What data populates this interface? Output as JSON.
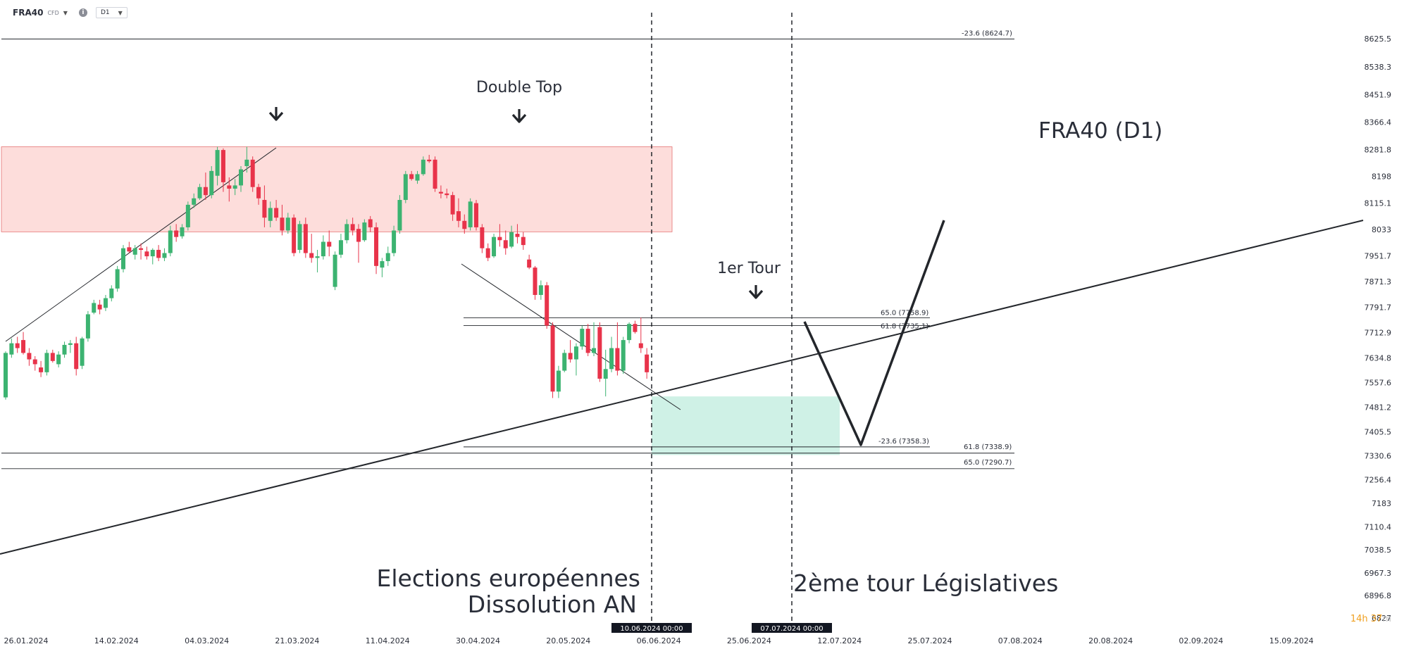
{
  "toolbar": {
    "symbol": "FRA40",
    "symbol_type": "CFD",
    "timeframe": "D1",
    "info_glyph": "i"
  },
  "timer": {
    "value": "14h 37",
    "unit": "m"
  },
  "colors": {
    "bull": "#26a69a",
    "bull_body": "#3cb371",
    "bear": "#e8334a",
    "resistance_zone": "rgba(244,67,54,0.18)",
    "support_zone": "rgba(38,190,140,0.22)",
    "line": "#23262b"
  },
  "chart_data": {
    "type": "candlestick",
    "instrument": "FRA40 (D1)",
    "y_axis": {
      "min": 6827.0,
      "max": 8624.7,
      "ticks": [
        8625.5,
        8538.3,
        8451.9,
        8366.4,
        8281.8,
        8198.0,
        8115.1,
        8033.0,
        7951.7,
        7871.3,
        7791.7,
        7712.9,
        7634.8,
        7557.6,
        7481.2,
        7405.5,
        7330.6,
        7256.4,
        7183.0,
        7110.4,
        7038.5,
        6967.3,
        6896.8,
        6827.0
      ]
    },
    "x_axis": {
      "ticks": [
        "26.01.2024",
        "14.02.2024",
        "04.03.2024",
        "21.03.2024",
        "11.04.2024",
        "30.04.2024",
        "20.05.2024",
        "06.06.2024",
        "25.06.2024",
        "12.07.2024",
        "25.07.2024",
        "07.08.2024",
        "20.08.2024",
        "02.09.2024",
        "15.09.2024"
      ],
      "crosshair_labels": [
        "10.06.2024 00:00",
        "07.07.2024 00:00"
      ]
    },
    "fib_levels": [
      {
        "label": "-23.6 (8624.7)",
        "value": 8624.7
      },
      {
        "label": "65.0 (7758.9)",
        "value": 7758.9
      },
      {
        "label": "61.8 (7735.1)",
        "value": 7735.1
      },
      {
        "label": "-23.6 (7358.3)",
        "value": 7358.3
      },
      {
        "label": "61.8 (7338.9)",
        "value": 7338.9
      },
      {
        "label": "65.0 (7290.7)",
        "value": 7290.7
      }
    ],
    "zones": [
      {
        "name": "resistance",
        "top": 8290,
        "bottom": 8026
      },
      {
        "name": "support",
        "top": 7515,
        "bottom": 7333
      }
    ],
    "annotations": {
      "title": "FRA40 (D1)",
      "double_top": "Double Top",
      "first_round": "1er Tour",
      "event_left_line1": "Elections européennes",
      "event_left_line2": "Dissolution AN",
      "event_right": "2ème tour Législatives"
    },
    "candles": [
      {
        "o": 7512,
        "h": 7655,
        "l": 7505,
        "c": 7650
      },
      {
        "o": 7645,
        "h": 7695,
        "l": 7635,
        "c": 7680
      },
      {
        "o": 7680,
        "h": 7700,
        "l": 7650,
        "c": 7665
      },
      {
        "o": 7690,
        "h": 7715,
        "l": 7645,
        "c": 7650
      },
      {
        "o": 7650,
        "h": 7665,
        "l": 7610,
        "c": 7630
      },
      {
        "o": 7630,
        "h": 7640,
        "l": 7595,
        "c": 7615
      },
      {
        "o": 7605,
        "h": 7625,
        "l": 7575,
        "c": 7590
      },
      {
        "o": 7590,
        "h": 7660,
        "l": 7580,
        "c": 7650
      },
      {
        "o": 7650,
        "h": 7660,
        "l": 7620,
        "c": 7625
      },
      {
        "o": 7615,
        "h": 7655,
        "l": 7605,
        "c": 7645
      },
      {
        "o": 7645,
        "h": 7685,
        "l": 7635,
        "c": 7675
      },
      {
        "o": 7675,
        "h": 7690,
        "l": 7650,
        "c": 7680
      },
      {
        "o": 7680,
        "h": 7700,
        "l": 7580,
        "c": 7600
      },
      {
        "o": 7610,
        "h": 7700,
        "l": 7600,
        "c": 7695
      },
      {
        "o": 7695,
        "h": 7780,
        "l": 7685,
        "c": 7770
      },
      {
        "o": 7775,
        "h": 7815,
        "l": 7770,
        "c": 7805
      },
      {
        "o": 7800,
        "h": 7815,
        "l": 7770,
        "c": 7785
      },
      {
        "o": 7790,
        "h": 7830,
        "l": 7780,
        "c": 7820
      },
      {
        "o": 7820,
        "h": 7860,
        "l": 7810,
        "c": 7850
      },
      {
        "o": 7850,
        "h": 7920,
        "l": 7840,
        "c": 7910
      },
      {
        "o": 7910,
        "h": 7985,
        "l": 7900,
        "c": 7975
      },
      {
        "o": 7978,
        "h": 7995,
        "l": 7960,
        "c": 7965
      },
      {
        "o": 7955,
        "h": 7985,
        "l": 7940,
        "c": 7975
      },
      {
        "o": 7975,
        "h": 7990,
        "l": 7940,
        "c": 7970
      },
      {
        "o": 7965,
        "h": 7980,
        "l": 7940,
        "c": 7950
      },
      {
        "o": 7950,
        "h": 7975,
        "l": 7925,
        "c": 7970
      },
      {
        "o": 7970,
        "h": 7985,
        "l": 7935,
        "c": 7945
      },
      {
        "o": 7945,
        "h": 7975,
        "l": 7935,
        "c": 7960
      },
      {
        "o": 7960,
        "h": 8045,
        "l": 7950,
        "c": 8030
      },
      {
        "o": 8030,
        "h": 8050,
        "l": 7995,
        "c": 8010
      },
      {
        "o": 8012,
        "h": 8050,
        "l": 8005,
        "c": 8040
      },
      {
        "o": 8040,
        "h": 8120,
        "l": 8030,
        "c": 8110
      },
      {
        "o": 8110,
        "h": 8145,
        "l": 8100,
        "c": 8130
      },
      {
        "o": 8130,
        "h": 8175,
        "l": 8125,
        "c": 8165
      },
      {
        "o": 8165,
        "h": 8210,
        "l": 8125,
        "c": 8140
      },
      {
        "o": 8140,
        "h": 8230,
        "l": 8130,
        "c": 8215
      },
      {
        "o": 8200,
        "h": 8290,
        "l": 8170,
        "c": 8280
      },
      {
        "o": 8280,
        "h": 8285,
        "l": 8150,
        "c": 8180
      },
      {
        "o": 8170,
        "h": 8195,
        "l": 8120,
        "c": 8160
      },
      {
        "o": 8160,
        "h": 8190,
        "l": 8140,
        "c": 8170
      },
      {
        "o": 8170,
        "h": 8230,
        "l": 8150,
        "c": 8220
      },
      {
        "o": 8230,
        "h": 8290,
        "l": 8210,
        "c": 8250
      },
      {
        "o": 8250,
        "h": 8260,
        "l": 8150,
        "c": 8165
      },
      {
        "o": 8165,
        "h": 8175,
        "l": 8110,
        "c": 8130
      },
      {
        "o": 8125,
        "h": 8170,
        "l": 8040,
        "c": 8070
      },
      {
        "o": 8060,
        "h": 8120,
        "l": 8040,
        "c": 8100
      },
      {
        "o": 8100,
        "h": 8125,
        "l": 8060,
        "c": 8070
      },
      {
        "o": 8070,
        "h": 8110,
        "l": 8015,
        "c": 8030
      },
      {
        "o": 8030,
        "h": 8085,
        "l": 8020,
        "c": 8070
      },
      {
        "o": 8070,
        "h": 8080,
        "l": 7950,
        "c": 7960
      },
      {
        "o": 7970,
        "h": 8060,
        "l": 7960,
        "c": 8050
      },
      {
        "o": 8050,
        "h": 8070,
        "l": 7945,
        "c": 7960
      },
      {
        "o": 7960,
        "h": 8020,
        "l": 7930,
        "c": 7945
      },
      {
        "o": 7945,
        "h": 7970,
        "l": 7900,
        "c": 7950
      },
      {
        "o": 7950,
        "h": 8015,
        "l": 7940,
        "c": 7995
      },
      {
        "o": 7995,
        "h": 8030,
        "l": 7950,
        "c": 7980
      },
      {
        "o": 7855,
        "h": 7965,
        "l": 7845,
        "c": 7955
      },
      {
        "o": 7955,
        "h": 8020,
        "l": 7945,
        "c": 8000
      },
      {
        "o": 8000,
        "h": 8065,
        "l": 7990,
        "c": 8050
      },
      {
        "o": 8050,
        "h": 8070,
        "l": 8015,
        "c": 8030
      },
      {
        "o": 8035,
        "h": 8050,
        "l": 7930,
        "c": 7995
      },
      {
        "o": 8000,
        "h": 8065,
        "l": 7995,
        "c": 8055
      },
      {
        "o": 8065,
        "h": 8075,
        "l": 8025,
        "c": 8040
      },
      {
        "o": 8040,
        "h": 8055,
        "l": 7895,
        "c": 7920
      },
      {
        "o": 7915,
        "h": 7945,
        "l": 7885,
        "c": 7935
      },
      {
        "o": 7935,
        "h": 7980,
        "l": 7920,
        "c": 7960
      },
      {
        "o": 7960,
        "h": 8045,
        "l": 7950,
        "c": 8030
      },
      {
        "o": 8030,
        "h": 8140,
        "l": 8020,
        "c": 8125
      },
      {
        "o": 8125,
        "h": 8215,
        "l": 8115,
        "c": 8205
      },
      {
        "o": 8205,
        "h": 8215,
        "l": 8185,
        "c": 8190
      },
      {
        "o": 8185,
        "h": 8215,
        "l": 8175,
        "c": 8205
      },
      {
        "o": 8205,
        "h": 8260,
        "l": 8200,
        "c": 8250
      },
      {
        "o": 8250,
        "h": 8265,
        "l": 8240,
        "c": 8245
      },
      {
        "o": 8250,
        "h": 8260,
        "l": 8150,
        "c": 8160
      },
      {
        "o": 8150,
        "h": 8170,
        "l": 8130,
        "c": 8145
      },
      {
        "o": 8145,
        "h": 8160,
        "l": 8130,
        "c": 8140
      },
      {
        "o": 8140,
        "h": 8150,
        "l": 8060,
        "c": 8080
      },
      {
        "o": 8090,
        "h": 8130,
        "l": 8040,
        "c": 8060
      },
      {
        "o": 8060,
        "h": 8080,
        "l": 8020,
        "c": 8035
      },
      {
        "o": 8040,
        "h": 8130,
        "l": 8030,
        "c": 8120
      },
      {
        "o": 8115,
        "h": 8125,
        "l": 8030,
        "c": 8040
      },
      {
        "o": 8040,
        "h": 8050,
        "l": 7960,
        "c": 7975
      },
      {
        "o": 7975,
        "h": 7990,
        "l": 7935,
        "c": 7945
      },
      {
        "o": 7950,
        "h": 8020,
        "l": 7945,
        "c": 8010
      },
      {
        "o": 8010,
        "h": 8050,
        "l": 7980,
        "c": 8000
      },
      {
        "o": 8000,
        "h": 8030,
        "l": 7955,
        "c": 7975
      },
      {
        "o": 7980,
        "h": 8045,
        "l": 7975,
        "c": 8025
      },
      {
        "o": 8020,
        "h": 8050,
        "l": 7990,
        "c": 8010
      },
      {
        "o": 8010,
        "h": 8025,
        "l": 7970,
        "c": 7985
      },
      {
        "o": 7940,
        "h": 7955,
        "l": 7910,
        "c": 7915
      },
      {
        "o": 7915,
        "h": 7920,
        "l": 7815,
        "c": 7830
      },
      {
        "o": 7830,
        "h": 7875,
        "l": 7815,
        "c": 7860
      },
      {
        "o": 7860,
        "h": 7870,
        "l": 7725,
        "c": 7735
      },
      {
        "o": 7735,
        "h": 7745,
        "l": 7510,
        "c": 7530
      },
      {
        "o": 7530,
        "h": 7610,
        "l": 7510,
        "c": 7595
      },
      {
        "o": 7595,
        "h": 7660,
        "l": 7590,
        "c": 7650
      },
      {
        "o": 7650,
        "h": 7690,
        "l": 7620,
        "c": 7630
      },
      {
        "o": 7630,
        "h": 7680,
        "l": 7580,
        "c": 7670
      },
      {
        "o": 7670,
        "h": 7735,
        "l": 7660,
        "c": 7725
      },
      {
        "o": 7725,
        "h": 7740,
        "l": 7640,
        "c": 7650
      },
      {
        "o": 7650,
        "h": 7745,
        "l": 7640,
        "c": 7665
      },
      {
        "o": 7730,
        "h": 7745,
        "l": 7560,
        "c": 7570
      },
      {
        "o": 7570,
        "h": 7660,
        "l": 7515,
        "c": 7600
      },
      {
        "o": 7600,
        "h": 7700,
        "l": 7590,
        "c": 7665
      },
      {
        "o": 7665,
        "h": 7745,
        "l": 7580,
        "c": 7595
      },
      {
        "o": 7595,
        "h": 7700,
        "l": 7585,
        "c": 7690
      },
      {
        "o": 7690,
        "h": 7745,
        "l": 7680,
        "c": 7740
      },
      {
        "o": 7740,
        "h": 7750,
        "l": 7710,
        "c": 7715
      },
      {
        "o": 7680,
        "h": 7760,
        "l": 7650,
        "c": 7665
      },
      {
        "o": 7645,
        "h": 7665,
        "l": 7570,
        "c": 7590
      }
    ]
  }
}
